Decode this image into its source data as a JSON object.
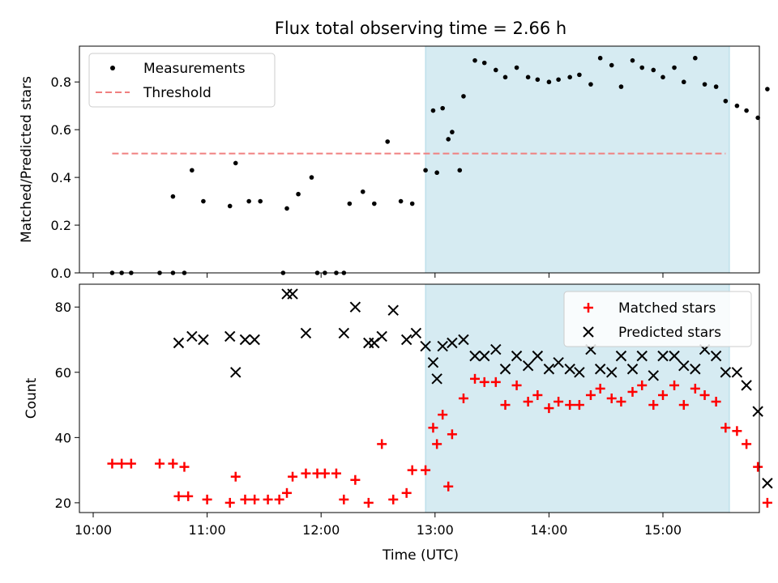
{
  "title": "Flux total observing time = 2.66 h",
  "colors": {
    "measurements": "#000000",
    "threshold": "#f08080",
    "matched": "#ff0000",
    "predicted": "#000000",
    "observing_span": "#add8e6"
  },
  "chart_data": [
    {
      "type": "scatter",
      "panel": "top",
      "ylabel": "Matched/Predicted stars",
      "ylim": [
        0,
        0.95
      ],
      "yticks": [
        0.0,
        0.2,
        0.4,
        0.6,
        0.8
      ],
      "ytick_labels": [
        "0.0",
        "0.2",
        "0.4",
        "0.6",
        "0.8"
      ],
      "xlim": [
        "09:50",
        "15:50"
      ],
      "legend_position": "top-left",
      "shaded_span": [
        "12:55",
        "15:35"
      ],
      "threshold": {
        "name": "Threshold",
        "value": 0.5,
        "x_range": [
          "10:10",
          "15:33"
        ]
      },
      "series": [
        {
          "name": "Measurements",
          "points": [
            [
              "10:10",
              0
            ],
            [
              "10:15",
              0
            ],
            [
              "10:20",
              0
            ],
            [
              "10:35",
              0
            ],
            [
              "10:42",
              0
            ],
            [
              "10:48",
              0
            ],
            [
              "10:42",
              0.32
            ],
            [
              "10:52",
              0.43
            ],
            [
              "10:58",
              0.3
            ],
            [
              "11:12",
              0.28
            ],
            [
              "11:15",
              0.46
            ],
            [
              "11:22",
              0.3
            ],
            [
              "11:28",
              0.3
            ],
            [
              "11:40",
              0
            ],
            [
              "11:42",
              0.27
            ],
            [
              "11:48",
              0.33
            ],
            [
              "11:55",
              0.4
            ],
            [
              "11:58",
              0
            ],
            [
              "12:02",
              0
            ],
            [
              "12:08",
              0
            ],
            [
              "12:12",
              0
            ],
            [
              "12:15",
              0.29
            ],
            [
              "12:22",
              0.34
            ],
            [
              "12:28",
              0.29
            ],
            [
              "12:35",
              0.55
            ],
            [
              "12:42",
              0.3
            ],
            [
              "12:48",
              0.29
            ],
            [
              "12:55",
              0.43
            ],
            [
              "13:01",
              0.42
            ],
            [
              "13:07",
              0.56
            ],
            [
              "13:13",
              0.43
            ],
            [
              "12:59",
              0.68
            ],
            [
              "13:04",
              0.69
            ],
            [
              "13:09",
              0.59
            ],
            [
              "13:15",
              0.74
            ],
            [
              "13:21",
              0.89
            ],
            [
              "13:26",
              0.88
            ],
            [
              "13:32",
              0.85
            ],
            [
              "13:37",
              0.82
            ],
            [
              "13:43",
              0.86
            ],
            [
              "13:49",
              0.82
            ],
            [
              "13:54",
              0.81
            ],
            [
              "14:00",
              0.8
            ],
            [
              "14:05",
              0.81
            ],
            [
              "14:11",
              0.82
            ],
            [
              "14:16",
              0.83
            ],
            [
              "14:22",
              0.79
            ],
            [
              "14:27",
              0.9
            ],
            [
              "14:33",
              0.87
            ],
            [
              "14:38",
              0.78
            ],
            [
              "14:44",
              0.89
            ],
            [
              "14:49",
              0.86
            ],
            [
              "14:55",
              0.85
            ],
            [
              "15:00",
              0.82
            ],
            [
              "15:06",
              0.86
            ],
            [
              "15:11",
              0.8
            ],
            [
              "15:17",
              0.9
            ],
            [
              "15:22",
              0.79
            ],
            [
              "15:28",
              0.78
            ],
            [
              "15:33",
              0.72
            ],
            [
              "15:39",
              0.7
            ],
            [
              "15:44",
              0.68
            ],
            [
              "15:50",
              0.65
            ],
            [
              "15:55",
              0.77
            ]
          ]
        }
      ]
    },
    {
      "type": "scatter",
      "panel": "bottom",
      "xlabel": "Time (UTC)",
      "ylabel": "Count",
      "ylim": [
        17,
        87
      ],
      "yticks": [
        20,
        40,
        60,
        80
      ],
      "ytick_labels": [
        "20",
        "40",
        "60",
        "80"
      ],
      "xlim": [
        "09:50",
        "15:50"
      ],
      "xticks": [
        "10:00",
        "11:00",
        "12:00",
        "13:00",
        "14:00",
        "15:00"
      ],
      "xtick_labels": [
        "10:00",
        "11:00",
        "12:00",
        "13:00",
        "14:00",
        "15:00"
      ],
      "legend_position": "top-right",
      "shaded_span": [
        "12:55",
        "15:35"
      ],
      "series": [
        {
          "name": "Matched stars",
          "marker": "plus",
          "points": [
            [
              "10:10",
              32
            ],
            [
              "10:15",
              32
            ],
            [
              "10:20",
              32
            ],
            [
              "10:35",
              32
            ],
            [
              "10:42",
              32
            ],
            [
              "10:48",
              31
            ],
            [
              "10:45",
              22
            ],
            [
              "10:50",
              22
            ],
            [
              "11:00",
              21
            ],
            [
              "11:12",
              20
            ],
            [
              "11:15",
              28
            ],
            [
              "11:20",
              21
            ],
            [
              "11:25",
              21
            ],
            [
              "11:32",
              21
            ],
            [
              "11:38",
              21
            ],
            [
              "11:42",
              23
            ],
            [
              "11:45",
              28
            ],
            [
              "11:52",
              29
            ],
            [
              "11:58",
              29
            ],
            [
              "12:02",
              29
            ],
            [
              "12:08",
              29
            ],
            [
              "12:12",
              21
            ],
            [
              "12:18",
              27
            ],
            [
              "12:25",
              20
            ],
            [
              "12:32",
              38
            ],
            [
              "12:38",
              21
            ],
            [
              "12:45",
              23
            ],
            [
              "12:48",
              30
            ],
            [
              "12:55",
              30
            ],
            [
              "13:01",
              38
            ],
            [
              "13:07",
              25
            ],
            [
              "12:59",
              43
            ],
            [
              "13:04",
              47
            ],
            [
              "13:09",
              41
            ],
            [
              "13:15",
              52
            ],
            [
              "13:21",
              58
            ],
            [
              "13:26",
              57
            ],
            [
              "13:32",
              57
            ],
            [
              "13:37",
              50
            ],
            [
              "13:43",
              56
            ],
            [
              "13:49",
              51
            ],
            [
              "13:54",
              53
            ],
            [
              "14:00",
              49
            ],
            [
              "14:05",
              51
            ],
            [
              "14:11",
              50
            ],
            [
              "14:16",
              50
            ],
            [
              "14:22",
              53
            ],
            [
              "14:27",
              55
            ],
            [
              "14:33",
              52
            ],
            [
              "14:38",
              51
            ],
            [
              "14:44",
              54
            ],
            [
              "14:49",
              56
            ],
            [
              "14:55",
              50
            ],
            [
              "15:00",
              53
            ],
            [
              "15:06",
              56
            ],
            [
              "15:11",
              50
            ],
            [
              "15:17",
              55
            ],
            [
              "15:22",
              53
            ],
            [
              "15:28",
              51
            ],
            [
              "15:33",
              43
            ],
            [
              "15:39",
              42
            ],
            [
              "15:44",
              38
            ],
            [
              "15:50",
              31
            ],
            [
              "15:55",
              20
            ]
          ]
        },
        {
          "name": "Predicted stars",
          "marker": "x",
          "points": [
            [
              "10:45",
              69
            ],
            [
              "10:52",
              71
            ],
            [
              "10:58",
              70
            ],
            [
              "11:12",
              71
            ],
            [
              "11:15",
              60
            ],
            [
              "11:20",
              70
            ],
            [
              "11:25",
              70
            ],
            [
              "11:42",
              84
            ],
            [
              "11:45",
              84
            ],
            [
              "11:52",
              72
            ],
            [
              "12:12",
              72
            ],
            [
              "12:18",
              80
            ],
            [
              "12:25",
              69
            ],
            [
              "12:28",
              69
            ],
            [
              "12:32",
              71
            ],
            [
              "12:38",
              79
            ],
            [
              "12:45",
              70
            ],
            [
              "12:50",
              72
            ],
            [
              "12:55",
              68
            ],
            [
              "13:01",
              58
            ],
            [
              "12:59",
              63
            ],
            [
              "13:04",
              68
            ],
            [
              "13:09",
              69
            ],
            [
              "13:15",
              70
            ],
            [
              "13:21",
              65
            ],
            [
              "13:26",
              65
            ],
            [
              "13:32",
              67
            ],
            [
              "13:37",
              61
            ],
            [
              "13:43",
              65
            ],
            [
              "13:49",
              62
            ],
            [
              "13:54",
              65
            ],
            [
              "14:00",
              61
            ],
            [
              "14:05",
              63
            ],
            [
              "14:11",
              61
            ],
            [
              "14:16",
              60
            ],
            [
              "14:22",
              67
            ],
            [
              "14:27",
              61
            ],
            [
              "14:33",
              60
            ],
            [
              "14:38",
              65
            ],
            [
              "14:44",
              61
            ],
            [
              "14:49",
              65
            ],
            [
              "14:55",
              59
            ],
            [
              "15:00",
              65
            ],
            [
              "15:06",
              65
            ],
            [
              "15:11",
              62
            ],
            [
              "15:17",
              61
            ],
            [
              "15:22",
              67
            ],
            [
              "15:28",
              65
            ],
            [
              "15:33",
              60
            ],
            [
              "15:39",
              60
            ],
            [
              "15:44",
              56
            ],
            [
              "15:50",
              48
            ],
            [
              "15:55",
              26
            ]
          ]
        }
      ]
    }
  ]
}
